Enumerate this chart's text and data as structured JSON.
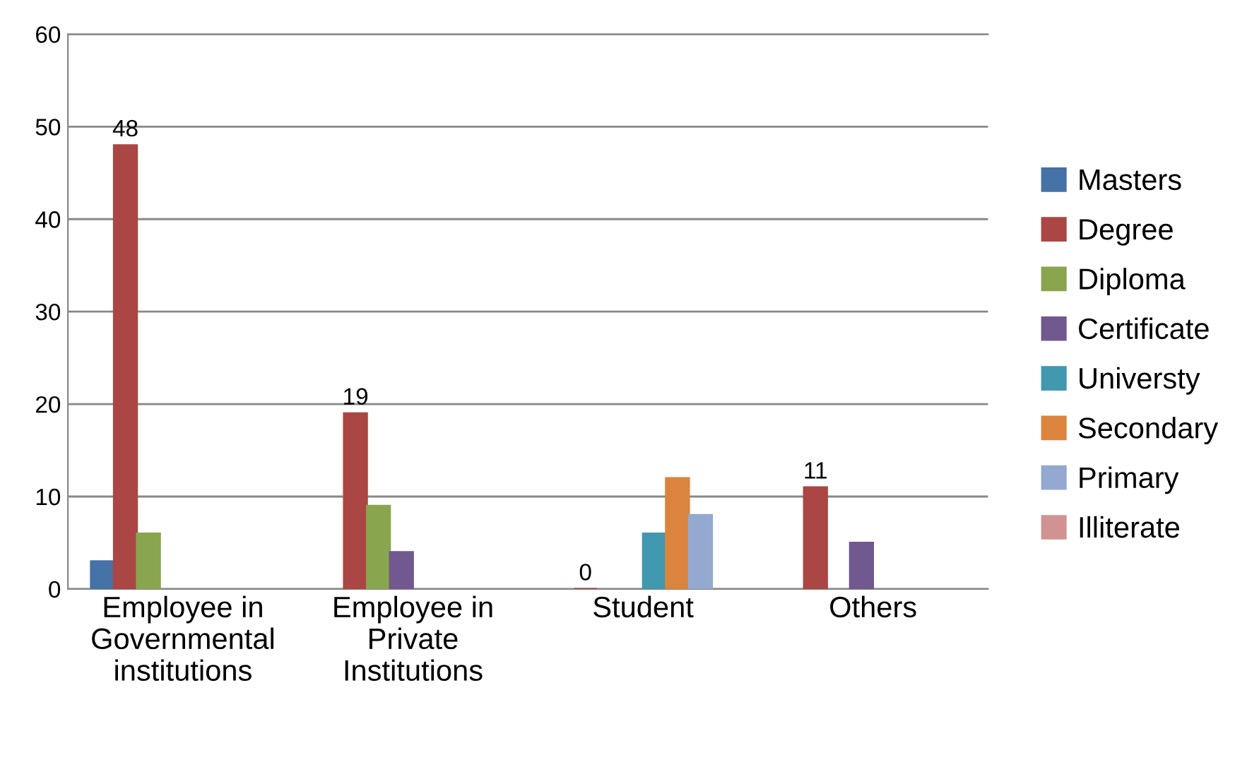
{
  "chart_data": {
    "type": "bar",
    "categories": [
      "Employee in\nGovernmental\ninstitutions",
      "Employee in\nPrivate\nInstitutions",
      "Student",
      "Others"
    ],
    "series": [
      {
        "name": "Masters",
        "color": "#4572a7",
        "values": [
          3,
          null,
          null,
          null
        ]
      },
      {
        "name": "Degree",
        "color": "#aa4643",
        "values": [
          48,
          19,
          0,
          11
        ],
        "value_labels": [
          "48",
          "19",
          "0",
          "11"
        ]
      },
      {
        "name": "Diploma",
        "color": "#89a54e",
        "values": [
          6,
          9,
          null,
          null
        ]
      },
      {
        "name": "Certificate",
        "color": "#71588f",
        "values": [
          null,
          4,
          null,
          5
        ]
      },
      {
        "name": "Universty",
        "color": "#4198af",
        "values": [
          null,
          null,
          6,
          null
        ]
      },
      {
        "name": "Secondary",
        "color": "#db843d",
        "values": [
          null,
          null,
          12,
          null
        ]
      },
      {
        "name": "Primary",
        "color": "#93a9cf",
        "values": [
          null,
          null,
          8,
          null
        ]
      },
      {
        "name": "Illiterate",
        "color": "#d19392",
        "values": [
          null,
          null,
          null,
          null
        ]
      }
    ],
    "ylim": [
      0,
      60
    ],
    "yticks": [
      0,
      10,
      20,
      30,
      40,
      50,
      60
    ],
    "grid": "y",
    "legend": "right"
  }
}
